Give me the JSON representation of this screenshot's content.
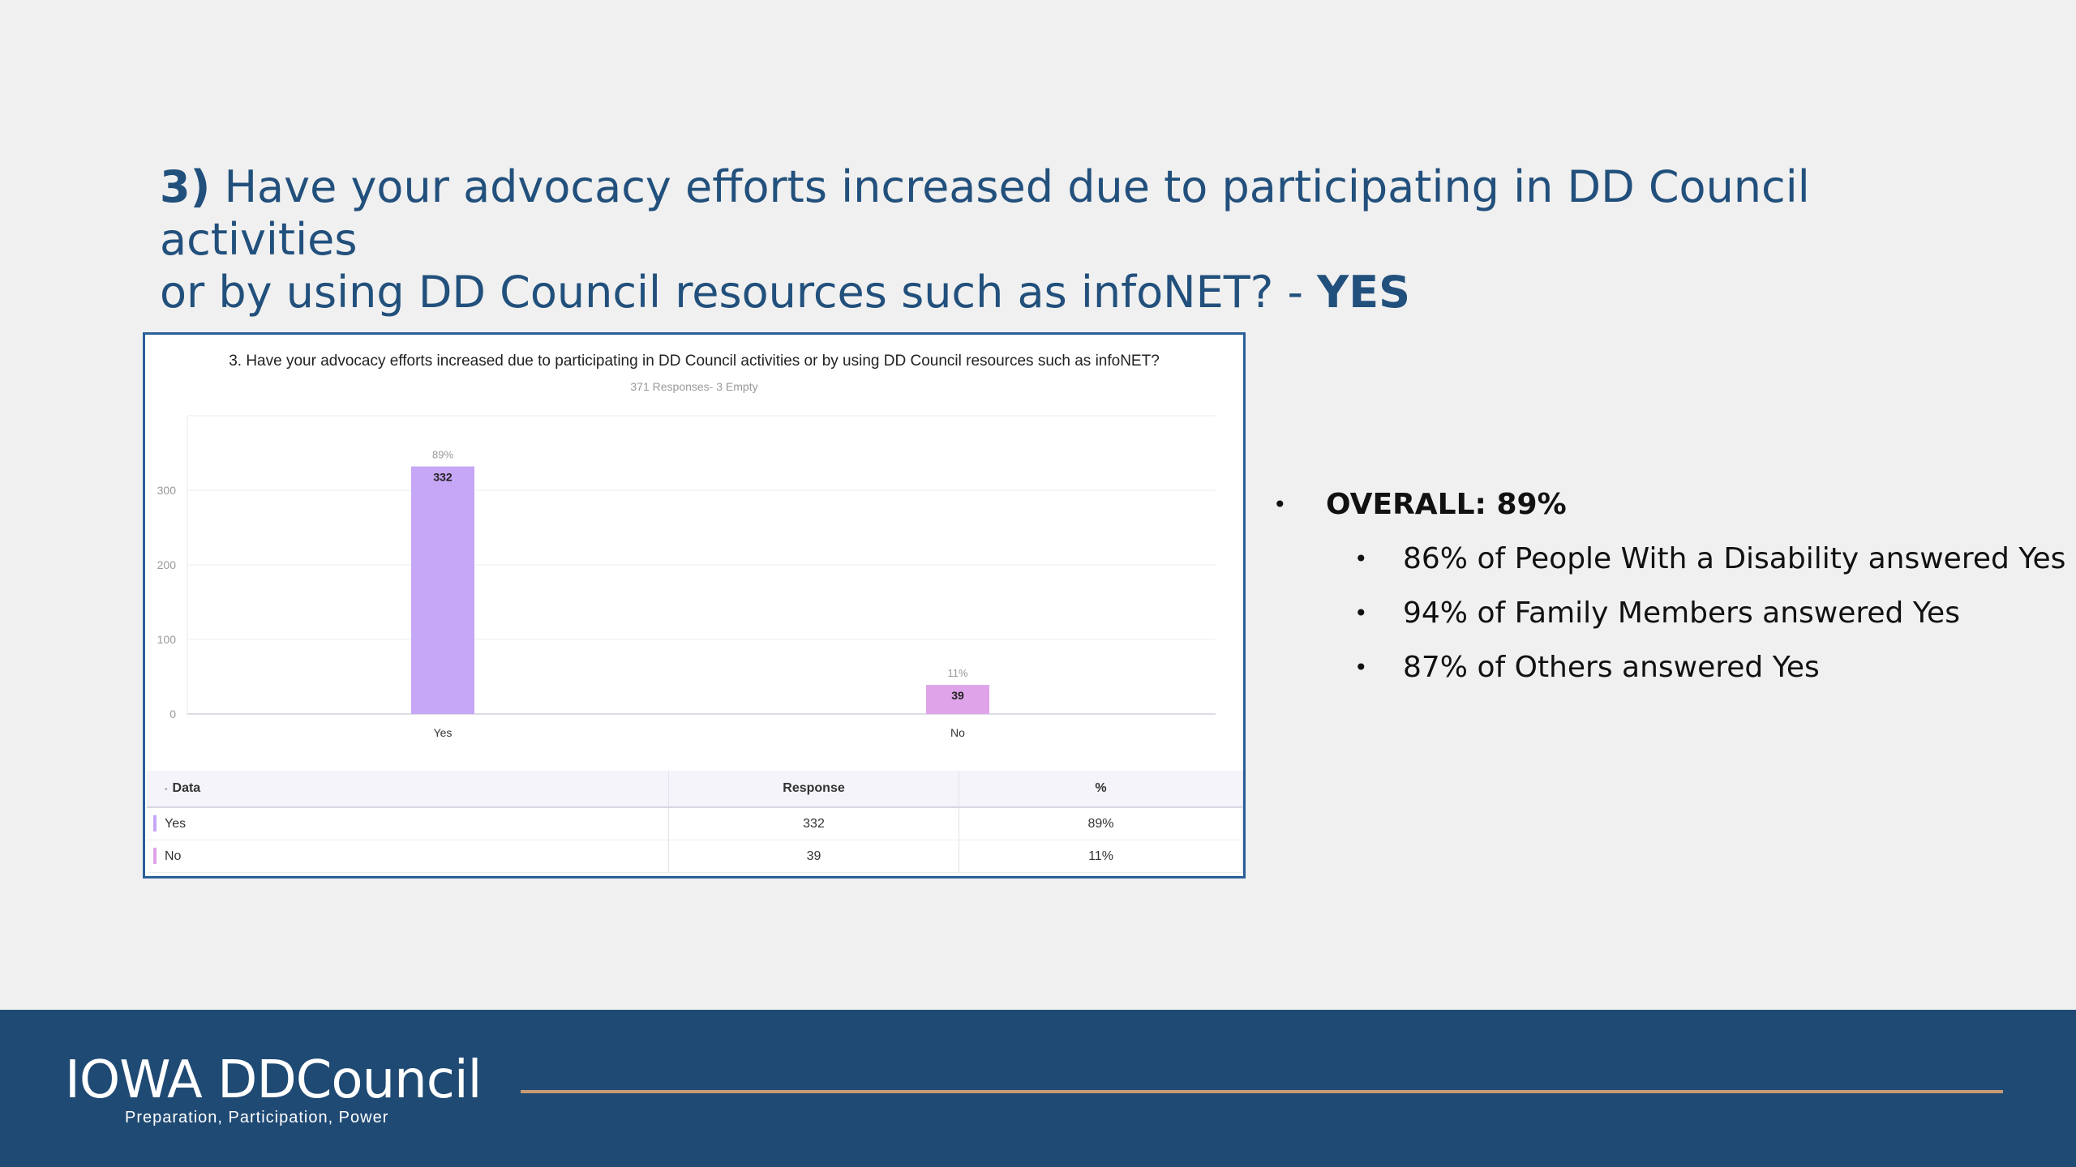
{
  "slide": {
    "title_number": "3)",
    "title_text": "Have your advocacy efforts increased due to participating in DD Council activities",
    "title_text_line2": "or by using DD Council resources such as infoNET? -",
    "title_answer": "YES"
  },
  "chart_data": {
    "type": "bar",
    "title": "3. Have your advocacy efforts increased due to participating in DD Council activities or by using DD Council resources such as infoNET?",
    "subtitle": "371 Responses- 3 Empty",
    "categories": [
      "Yes",
      "No"
    ],
    "values": [
      332,
      39
    ],
    "percent_labels": [
      "89%",
      "11%"
    ],
    "colors": [
      "#c6a6f6",
      "#dea3e9"
    ],
    "yticks": [
      0,
      100,
      200,
      300
    ],
    "ylim": [
      0,
      400
    ],
    "grid": true
  },
  "table": {
    "headers": [
      "Data",
      "Response",
      "%"
    ],
    "rows": [
      {
        "label": "Yes",
        "response": "332",
        "percent": "89%",
        "color": "#c6a6f6"
      },
      {
        "label": "No",
        "response": "39",
        "percent": "11%",
        "color": "#dea3e9"
      }
    ]
  },
  "bullets": {
    "overall": "OVERALL: 89%",
    "items": [
      "86% of People With a Disability answered Yes",
      "94% of Family Members answered Yes",
      "87% of Others answered Yes"
    ],
    "bullet_char": "•"
  },
  "footer": {
    "logo": "IOWA DDCouncil",
    "tagline": "Preparation, Participation, Power"
  }
}
